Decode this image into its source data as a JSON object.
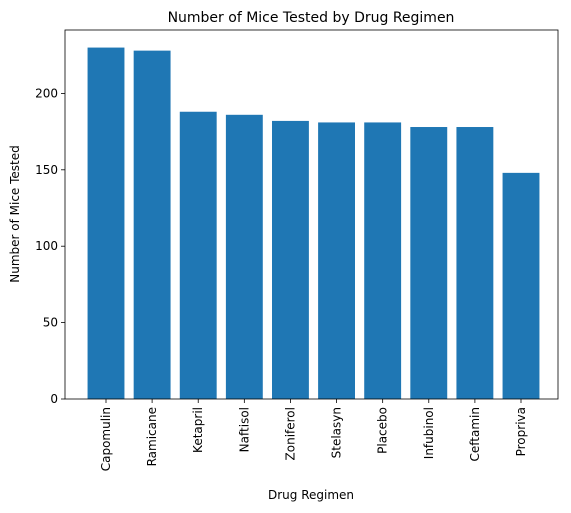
{
  "chart_data": {
    "type": "bar",
    "title": "Number of Mice Tested by Drug Regimen",
    "xlabel": "Drug Regimen",
    "ylabel": "Number of Mice Tested",
    "categories": [
      "Capomulin",
      "Ramicane",
      "Ketapril",
      "Naftisol",
      "Zoniferol",
      "Stelasyn",
      "Placebo",
      "Infubinol",
      "Ceftamin",
      "Propriva"
    ],
    "values": [
      230,
      228,
      188,
      186,
      182,
      181,
      181,
      178,
      178,
      148
    ],
    "ylim": [
      0,
      241.5
    ],
    "yticks": [
      0,
      50,
      100,
      150,
      200
    ],
    "bar_color": "#1f77b4",
    "grid": false,
    "legend": "none"
  }
}
